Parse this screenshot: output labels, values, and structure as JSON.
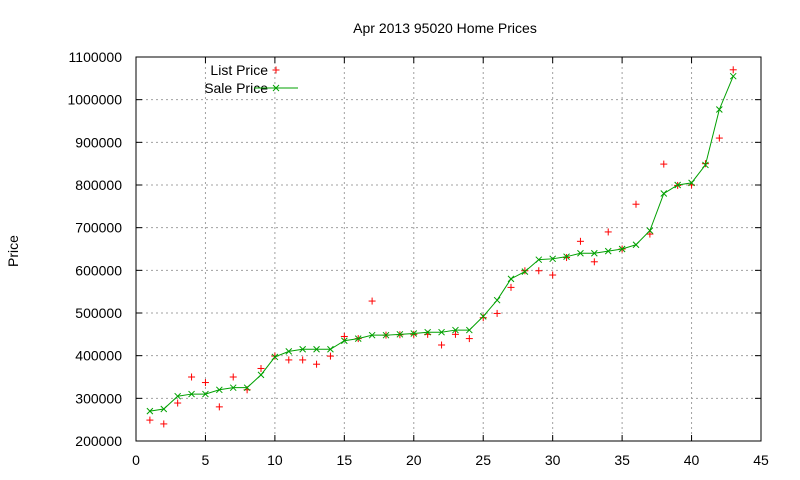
{
  "chart_data": {
    "type": "line",
    "title": "Apr 2013 95020 Home Prices",
    "xlabel": "",
    "ylabel": "Price",
    "xlim": [
      0,
      45
    ],
    "ylim": [
      200000,
      1100000
    ],
    "x_ticks": [
      0,
      5,
      10,
      15,
      20,
      25,
      30,
      35,
      40,
      45
    ],
    "y_ticks": [
      200000,
      300000,
      400000,
      500000,
      600000,
      700000,
      800000,
      900000,
      1000000,
      1100000
    ],
    "x_tick_labels": [
      "0",
      "5",
      "10",
      "15",
      "20",
      "25",
      "30",
      "35",
      "40",
      "45"
    ],
    "y_tick_labels": [
      "200000",
      "300000",
      "400000",
      "500000",
      "600000",
      "700000",
      "800000",
      "900000",
      "1000000",
      "1100000"
    ],
    "grid": true,
    "legend_position": "top-left",
    "series": [
      {
        "name": "List Price",
        "style": "points",
        "marker": "plus",
        "color": "#ff0000",
        "x": [
          1,
          2,
          3,
          4,
          5,
          6,
          7,
          8,
          9,
          10,
          11,
          12,
          13,
          14,
          15,
          16,
          17,
          18,
          19,
          20,
          21,
          22,
          23,
          24,
          25,
          26,
          27,
          28,
          29,
          30,
          31,
          32,
          33,
          34,
          35,
          36,
          37,
          38,
          39,
          40,
          41,
          42,
          43
        ],
        "values": [
          249000,
          240000,
          289000,
          350000,
          337000,
          280000,
          350000,
          320000,
          370000,
          399000,
          390000,
          390000,
          380000,
          399000,
          445000,
          440000,
          528000,
          448000,
          449000,
          450000,
          450000,
          425000,
          450000,
          440000,
          489000,
          499000,
          560000,
          599000,
          599000,
          589000,
          630000,
          668000,
          620000,
          690000,
          650000,
          755000,
          685000,
          849000,
          799000,
          800000,
          850000,
          910000,
          1070000
        ]
      },
      {
        "name": "Sale Price",
        "style": "linespoints",
        "marker": "cross",
        "color": "#00a000",
        "x": [
          1,
          2,
          3,
          4,
          5,
          6,
          7,
          8,
          9,
          10,
          11,
          12,
          13,
          14,
          15,
          16,
          17,
          18,
          19,
          20,
          21,
          22,
          23,
          24,
          25,
          26,
          27,
          28,
          29,
          30,
          31,
          32,
          33,
          34,
          35,
          36,
          37,
          38,
          39,
          40,
          41,
          42,
          43
        ],
        "values": [
          270000,
          275000,
          305000,
          310000,
          310000,
          320000,
          325000,
          325000,
          355000,
          397000,
          410000,
          415000,
          415000,
          415000,
          435000,
          440000,
          448000,
          448000,
          450000,
          452000,
          455000,
          455000,
          460000,
          460000,
          492000,
          530000,
          580000,
          597000,
          625000,
          627000,
          632000,
          640000,
          640000,
          645000,
          650000,
          660000,
          693000,
          780000,
          800000,
          805000,
          847000,
          977000,
          1055000
        ]
      }
    ]
  }
}
